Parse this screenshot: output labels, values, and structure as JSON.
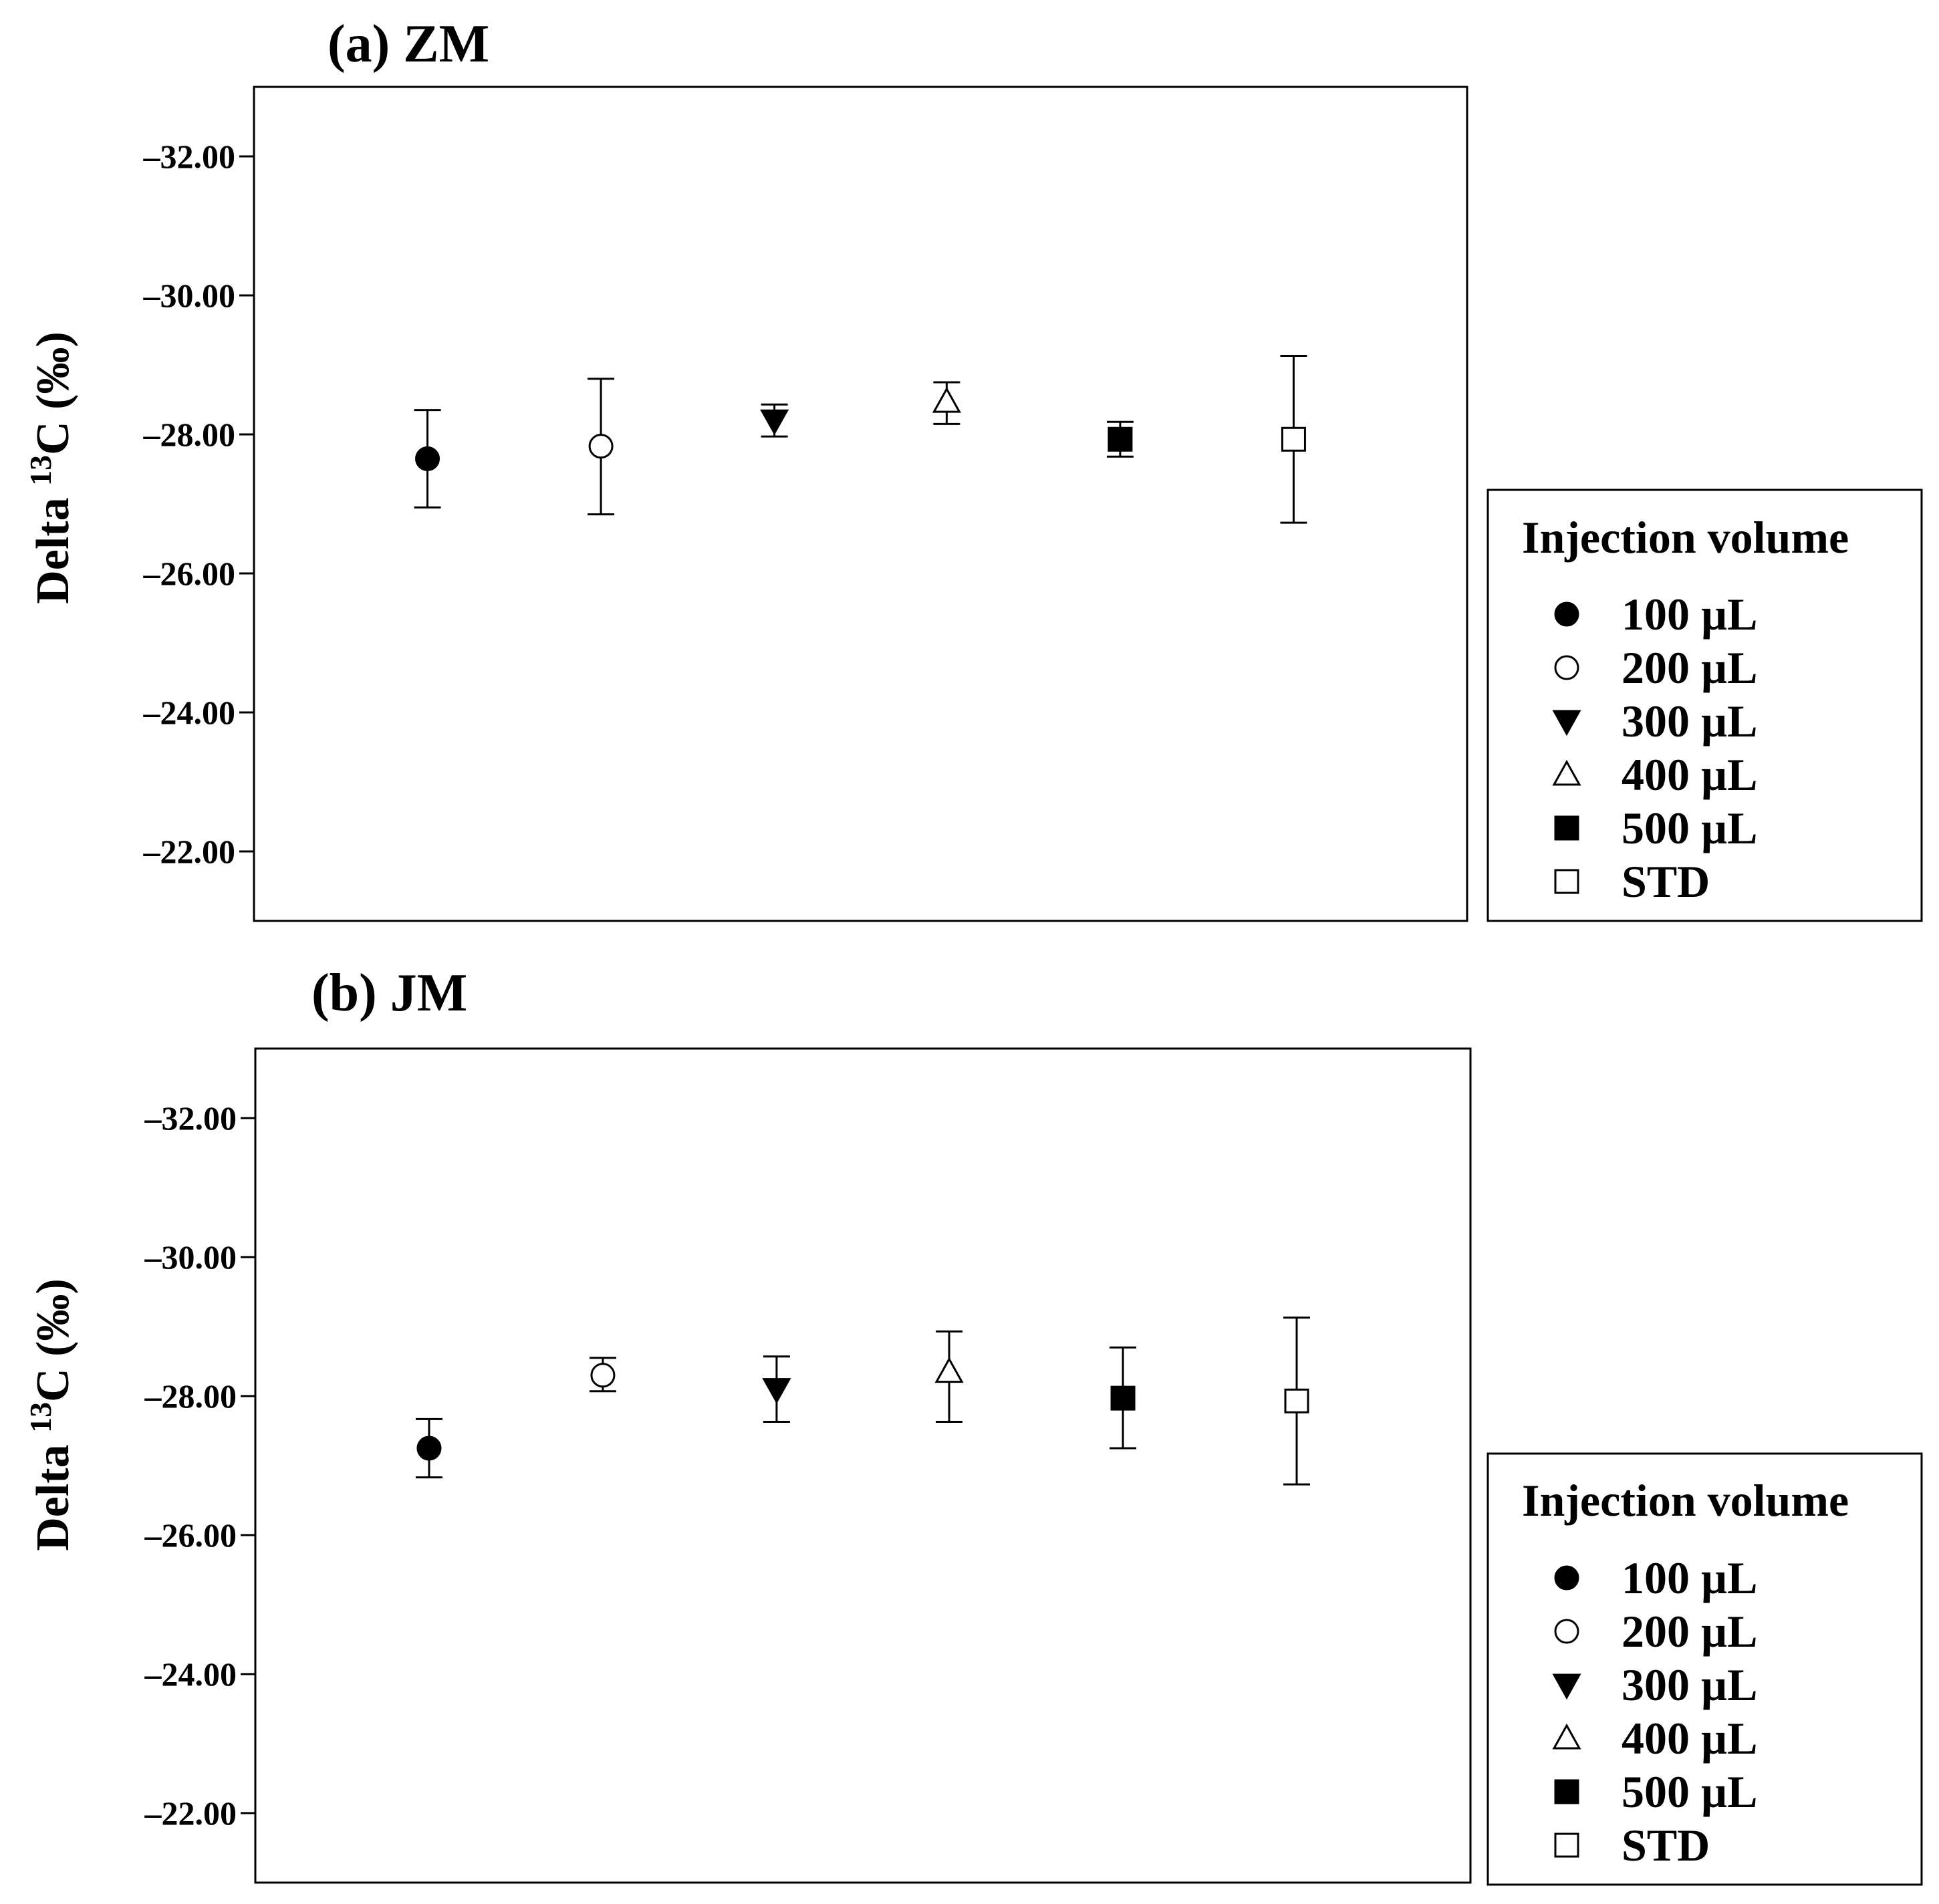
{
  "chart_data": [
    {
      "type": "scatter",
      "title": "(a) ZM",
      "ylabel": {
        "prefix": "Delta ",
        "sup": "13",
        "suffix": "C (‰)"
      },
      "y_ticks": [
        -32,
        -30,
        -28,
        -26,
        -24,
        -22
      ],
      "y_tick_labels": [
        "–32.00",
        "–30.00",
        "–28.00",
        "–26.00",
        "–24.00",
        "–22.00"
      ],
      "ylim": [
        -33,
        -21
      ],
      "y_inverted": true,
      "grid": false,
      "legend": {
        "title": "Injection volume",
        "position": "right",
        "entries": [
          "100 µL",
          "200 µL",
          "300 µL",
          "400 µL",
          "500 µL",
          "STD"
        ]
      },
      "series": [
        {
          "name": "100 µL",
          "marker": "filled-circle",
          "y": -27.65,
          "err_low": -26.95,
          "err_high": -28.35
        },
        {
          "name": "200 µL",
          "marker": "open-circle",
          "y": -27.83,
          "err_low": -26.85,
          "err_high": -28.8
        },
        {
          "name": "300 µL",
          "marker": "filled-triangle-down",
          "y": -28.2,
          "err_low": -27.97,
          "err_high": -28.43
        },
        {
          "name": "400 µL",
          "marker": "open-triangle-up",
          "y": -28.47,
          "err_low": -28.15,
          "err_high": -28.75
        },
        {
          "name": "500 µL",
          "marker": "filled-square",
          "y": -27.93,
          "err_low": -27.68,
          "err_high": -28.18
        },
        {
          "name": "STD",
          "marker": "open-square",
          "y": -27.93,
          "err_low": -26.73,
          "err_high": -29.13
        }
      ]
    },
    {
      "type": "scatter",
      "title": "(b) JM",
      "ylabel": {
        "prefix": "Delta ",
        "sup": "13",
        "suffix": "C (‰)"
      },
      "y_ticks": [
        -32,
        -30,
        -28,
        -26,
        -24,
        -22
      ],
      "y_tick_labels": [
        "–32.00",
        "–30.00",
        "–28.00",
        "–26.00",
        "–24.00",
        "–22.00"
      ],
      "ylim": [
        -33,
        -21
      ],
      "y_inverted": true,
      "grid": false,
      "legend": {
        "title": "Injection volume",
        "position": "right",
        "entries": [
          "100 µL",
          "200 µL",
          "300 µL",
          "400 µL",
          "500 µL",
          "STD"
        ]
      },
      "series": [
        {
          "name": "100 µL",
          "marker": "filled-circle",
          "y": -27.25,
          "err_low": -26.83,
          "err_high": -27.67
        },
        {
          "name": "200 µL",
          "marker": "open-circle",
          "y": -28.3,
          "err_low": -28.07,
          "err_high": -28.55
        },
        {
          "name": "300 µL",
          "marker": "filled-triangle-down",
          "y": -28.1,
          "err_low": -27.63,
          "err_high": -28.57
        },
        {
          "name": "400 µL",
          "marker": "open-triangle-up",
          "y": -28.35,
          "err_low": -27.63,
          "err_high": -28.93
        },
        {
          "name": "500 µL",
          "marker": "filled-square",
          "y": -27.97,
          "err_low": -27.25,
          "err_high": -28.7
        },
        {
          "name": "STD",
          "marker": "open-square",
          "y": -27.93,
          "err_low": -26.73,
          "err_high": -29.13
        }
      ]
    }
  ]
}
